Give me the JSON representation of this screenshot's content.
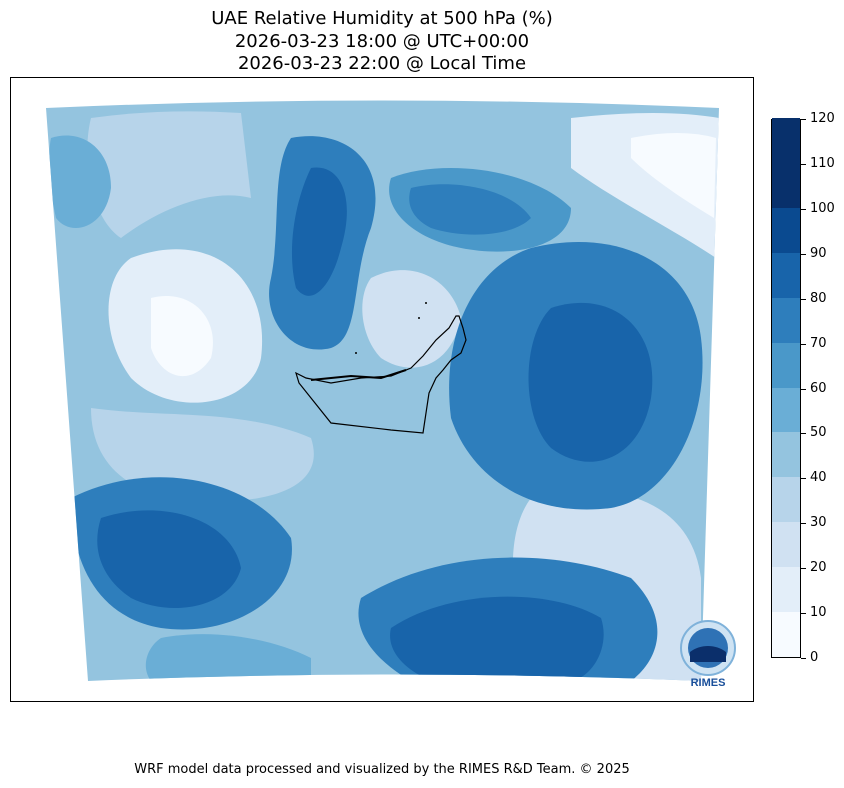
{
  "title": {
    "line1": "UAE Relative Humidity at 500 hPa (%)",
    "line2": "2026-03-23 18:00 @ UTC+00:00",
    "line3": "2026-03-23 22:00 @ Local Time"
  },
  "colorbar": {
    "ticks": [
      "0",
      "10",
      "20",
      "30",
      "40",
      "50",
      "60",
      "70",
      "80",
      "90",
      "100",
      "110",
      "120"
    ],
    "colors": [
      "#f7fbff",
      "#e3eef9",
      "#d0e1f2",
      "#b7d4ea",
      "#94c4df",
      "#6aaed6",
      "#4a98c9",
      "#2e7ebc",
      "#1864aa",
      "#0a4a90",
      "#08306b",
      "#08306b"
    ]
  },
  "logo": {
    "text": "RIMES"
  },
  "footer": "WRF model data processed and visualized by the RIMES R&D Team. © 2025"
}
